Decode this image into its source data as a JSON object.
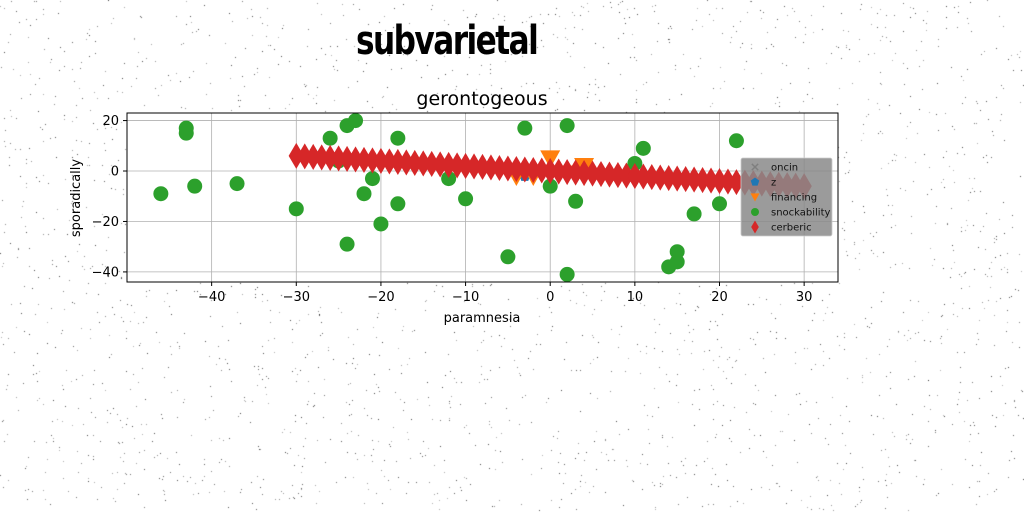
{
  "suptitle": "subvarietal",
  "chart_data": {
    "type": "scatter",
    "title": "gerontogeous",
    "xlabel": "paramnesia",
    "ylabel": "sporadically",
    "xlim": [
      -50,
      34
    ],
    "ylim": [
      -44,
      23
    ],
    "xticks": [
      -40,
      -30,
      -20,
      -10,
      0,
      10,
      20,
      30
    ],
    "yticks": [
      -40,
      -20,
      0,
      20
    ],
    "xtick_labels": [
      "−40",
      "−30",
      "−20",
      "−10",
      "0",
      "10",
      "20",
      "30"
    ],
    "ytick_labels": [
      "−40",
      "−20",
      "0",
      "20"
    ],
    "grid": true,
    "legend_position": "right",
    "series": [
      {
        "name": "oncin",
        "marker": "x",
        "color": "#7f7f7f",
        "x": [],
        "y": []
      },
      {
        "name": "z",
        "marker": "pentagon",
        "color": "#1f77b4",
        "x": [
          -3,
          1,
          3
        ],
        "y": [
          -2,
          -1,
          -1
        ]
      },
      {
        "name": "financing",
        "marker": "triangle-down",
        "color": "#ff7f0e",
        "x": [
          -4,
          -2,
          0,
          2,
          4
        ],
        "y": [
          -2,
          -2,
          5,
          -1,
          2
        ]
      },
      {
        "name": "snockability",
        "marker": "circle",
        "color": "#2ca02c",
        "x": [
          -46,
          -43,
          -43,
          -42,
          -37,
          -30,
          -26,
          -25,
          -24,
          -24,
          -23,
          -22,
          -21,
          -20,
          -18,
          -18,
          -12,
          -10,
          -5,
          -3,
          0,
          2,
          2,
          3,
          10,
          11,
          14,
          15,
          15,
          17,
          20,
          22
        ],
        "y": [
          -9,
          17,
          15,
          -6,
          -5,
          -15,
          13,
          4,
          18,
          -29,
          20,
          -9,
          -3,
          -21,
          13,
          -13,
          -3,
          -11,
          -34,
          17,
          -6,
          18,
          -41,
          -12,
          3,
          9,
          -38,
          -32,
          -36,
          -17,
          -13,
          12
        ]
      },
      {
        "name": "cerberic",
        "marker": "thin-diamond",
        "color": "#d62728",
        "x": [
          -30,
          -29,
          -28,
          -27,
          -26,
          -25,
          -24,
          -23,
          -22,
          -21,
          -20,
          -19,
          -18,
          -17,
          -16,
          -15,
          -14,
          -13,
          -12,
          -11,
          -10,
          -9,
          -8,
          -7,
          -6,
          -5,
          -4,
          -3,
          -2,
          -1,
          0,
          1,
          2,
          3,
          4,
          5,
          6,
          7,
          8,
          9,
          10,
          11,
          12,
          13,
          14,
          15,
          16,
          17,
          18,
          19,
          20,
          21,
          22,
          23,
          24,
          25,
          26,
          27,
          28,
          29,
          30
        ],
        "y": [
          6,
          5.8,
          5.6,
          5.4,
          5.2,
          5,
          4.8,
          4.6,
          4.4,
          4.2,
          4,
          3.8,
          3.6,
          3.4,
          3.2,
          3,
          2.8,
          2.6,
          2.4,
          2.2,
          2,
          1.8,
          1.6,
          1.4,
          1.2,
          1,
          0.8,
          0.6,
          0.4,
          0.2,
          0,
          -0.2,
          -0.4,
          -0.6,
          -0.8,
          -1,
          -1.2,
          -1.4,
          -1.6,
          -1.8,
          -2,
          -2.2,
          -2.4,
          -2.6,
          -2.8,
          -3,
          -3.2,
          -3.4,
          -3.6,
          -3.8,
          -4,
          -4.2,
          -4.4,
          -4.6,
          -4.8,
          -5,
          -5.2,
          -5.4,
          -5.6,
          -5.8,
          -6
        ]
      }
    ]
  }
}
